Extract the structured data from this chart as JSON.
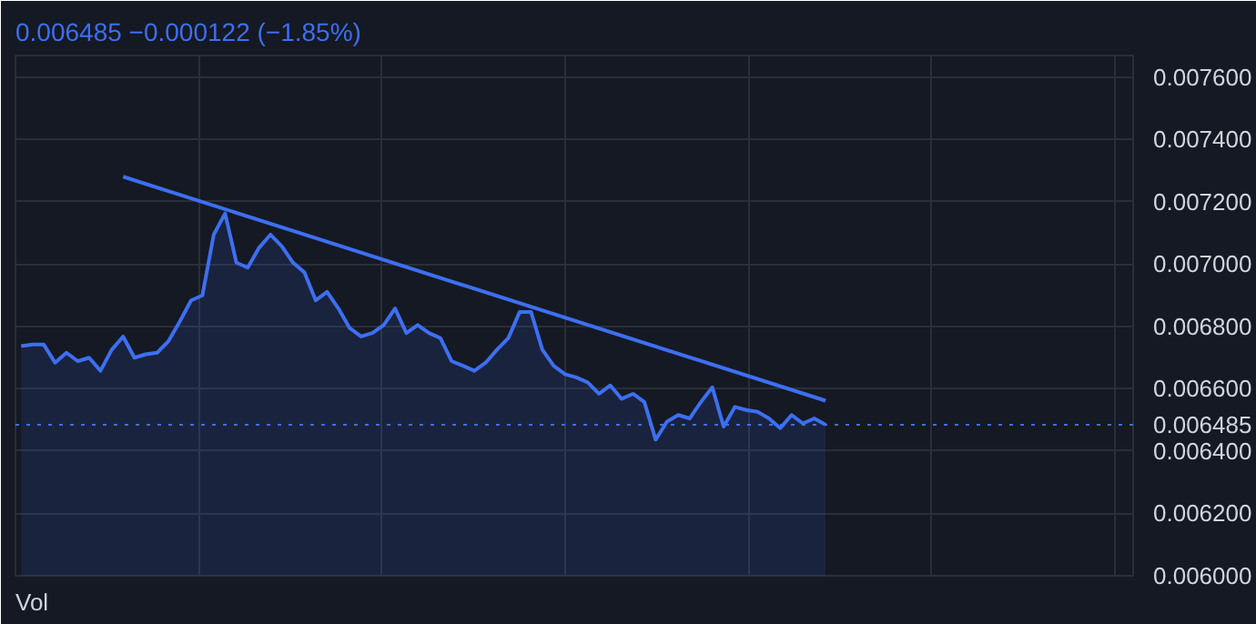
{
  "chart_data": {
    "type": "area",
    "title": "0.006485 −0.000122 (−1.85%)",
    "annotations": [
      "Vol"
    ],
    "categories": [
      null,
      null,
      null,
      null,
      null,
      null,
      null,
      null,
      null,
      null,
      null,
      null,
      null,
      null,
      null,
      null,
      null,
      null,
      null,
      null,
      null,
      null,
      null,
      null,
      null,
      null,
      null,
      null,
      null,
      null,
      null,
      null,
      null,
      null,
      null,
      null,
      null,
      null,
      null,
      null,
      null,
      null,
      null,
      null,
      null,
      null,
      null,
      null,
      null,
      null,
      null,
      null,
      null,
      null,
      null,
      null,
      null,
      null,
      null,
      null,
      null,
      null,
      null,
      null,
      null,
      null,
      null,
      null,
      null,
      null,
      null,
      null
    ],
    "series": [
      {
        "color": "#3d6ff0",
        "values": [
          0.006737,
          0.006742,
          0.006742,
          0.006684,
          0.006716,
          0.006689,
          0.0067,
          0.006658,
          0.006726,
          0.006768,
          0.0067,
          0.006711,
          0.006716,
          0.006753,
          0.006816,
          0.006884,
          0.0069,
          0.007095,
          0.007163,
          0.007005,
          0.006989,
          0.007053,
          0.007095,
          0.007058,
          0.007005,
          0.006974,
          0.006884,
          0.006911,
          0.006858,
          0.006795,
          0.006768,
          0.006779,
          0.006805,
          0.006858,
          0.006779,
          0.006805,
          0.006779,
          0.006763,
          0.006689,
          0.006674,
          0.006658,
          0.006684,
          0.006726,
          0.006763,
          0.006847,
          0.006847,
          0.006726,
          0.006674,
          0.006647,
          0.006637,
          0.006621,
          0.006584,
          0.006611,
          0.006568,
          0.006584,
          0.006558,
          0.006437,
          0.006495,
          0.006516,
          0.006505,
          0.006558,
          0.006605,
          0.006479,
          0.006542,
          0.006532,
          0.006526,
          0.006505,
          0.006474,
          0.006516,
          0.006489,
          0.006505,
          0.006485
        ]
      },
      {
        "type": "line",
        "color": "#3d6ff0",
        "values": [
          null,
          null,
          null,
          null,
          null,
          null,
          null,
          null,
          null,
          0.007281,
          null,
          null,
          null,
          null,
          null,
          null,
          null,
          null,
          null,
          null,
          null,
          null,
          null,
          null,
          null,
          null,
          null,
          null,
          null,
          null,
          null,
          null,
          null,
          null,
          null,
          null,
          null,
          null,
          null,
          null,
          null,
          null,
          null,
          null,
          null,
          null,
          null,
          null,
          null,
          null,
          null,
          null,
          null,
          null,
          null,
          null,
          null,
          null,
          null,
          null,
          null,
          null,
          null,
          null,
          null,
          null,
          null,
          null,
          null,
          null,
          null,
          0.006562
        ]
      }
    ],
    "ref_lines": [
      {
        "axis": "y",
        "value": 0.006485,
        "label": "0.006485",
        "color": "#3d6ff0",
        "line_style": "dotted"
      }
    ],
    "ylim": [
      0.006,
      0.00767
    ],
    "yticks": [
      {
        "value": 0.006,
        "label": "0.006000"
      },
      {
        "value": 0.0062,
        "label": "0.006200"
      },
      {
        "value": 0.0064,
        "label": "0.006400"
      },
      {
        "value": 0.0066,
        "label": "0.006600"
      },
      {
        "value": 0.0068,
        "label": "0.006800"
      },
      {
        "value": 0.007,
        "label": "0.007000"
      },
      {
        "value": 0.0072,
        "label": "0.007200"
      },
      {
        "value": 0.0074,
        "label": "0.007400"
      },
      {
        "value": 0.0076,
        "label": "0.007600"
      }
    ],
    "tick_labels": "y",
    "grid": true
  }
}
